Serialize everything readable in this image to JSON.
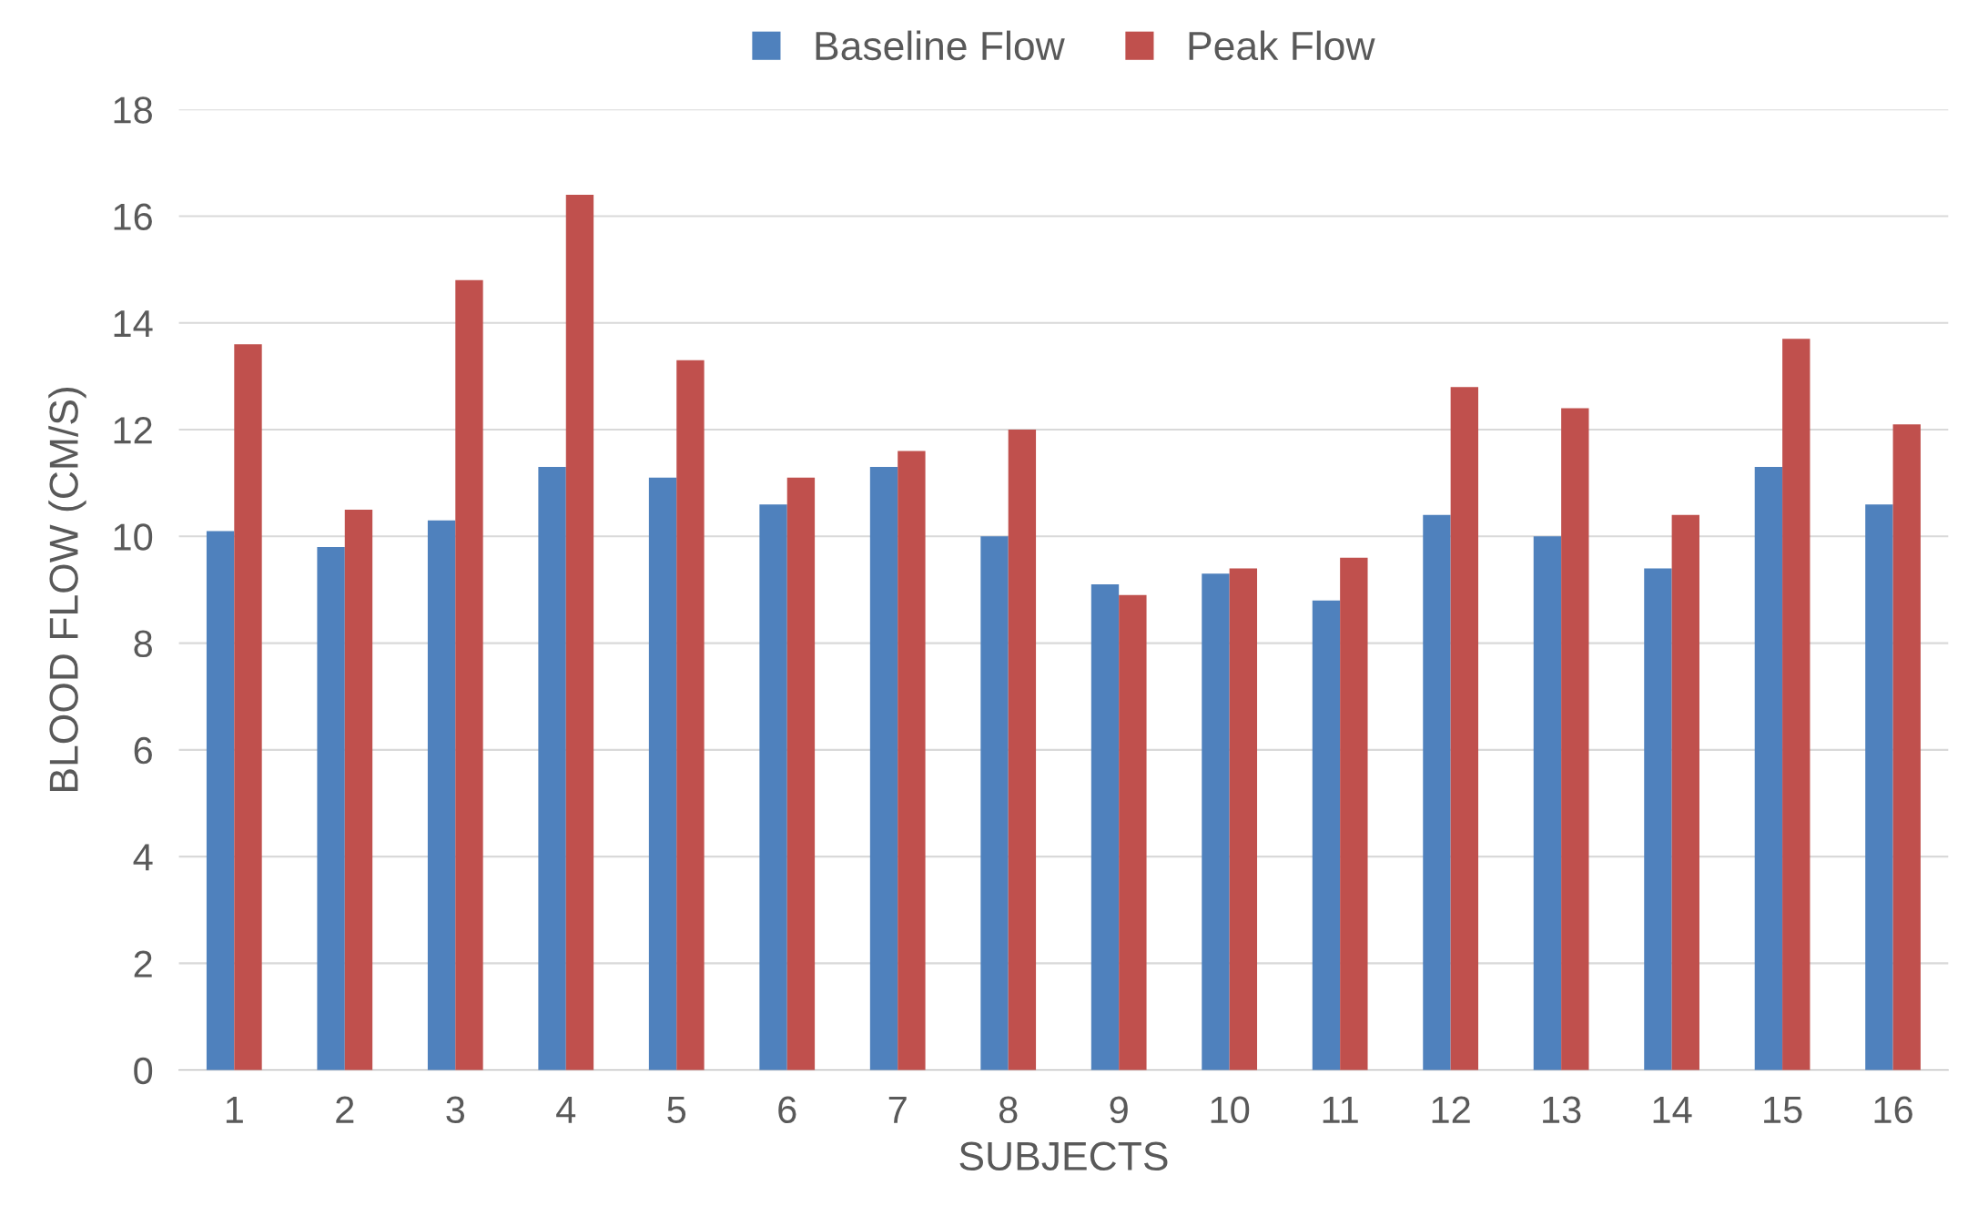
{
  "chart_data": {
    "type": "bar",
    "xlabel": "SUBJECTS",
    "ylabel": "BLOOD FLOW (CM/S)",
    "categories": [
      "1",
      "2",
      "3",
      "4",
      "5",
      "6",
      "7",
      "8",
      "9",
      "10",
      "11",
      "12",
      "13",
      "14",
      "15",
      "16"
    ],
    "series": [
      {
        "name": "Baseline Flow",
        "color": "#4f81bd",
        "values": [
          10.1,
          9.8,
          10.3,
          11.3,
          11.1,
          10.6,
          11.3,
          10.0,
          9.1,
          9.3,
          8.8,
          10.4,
          10.0,
          9.4,
          11.3,
          10.6
        ]
      },
      {
        "name": "Peak Flow",
        "color": "#c0504d",
        "values": [
          13.6,
          10.5,
          14.8,
          16.4,
          13.3,
          11.1,
          11.6,
          12.0,
          8.9,
          9.4,
          9.6,
          12.8,
          12.4,
          10.4,
          13.7,
          12.1
        ]
      }
    ],
    "ylim": [
      0,
      18
    ],
    "yticks": [
      0,
      2,
      4,
      6,
      8,
      10,
      12,
      14,
      16,
      18
    ],
    "grid": "y",
    "legend": "top"
  }
}
